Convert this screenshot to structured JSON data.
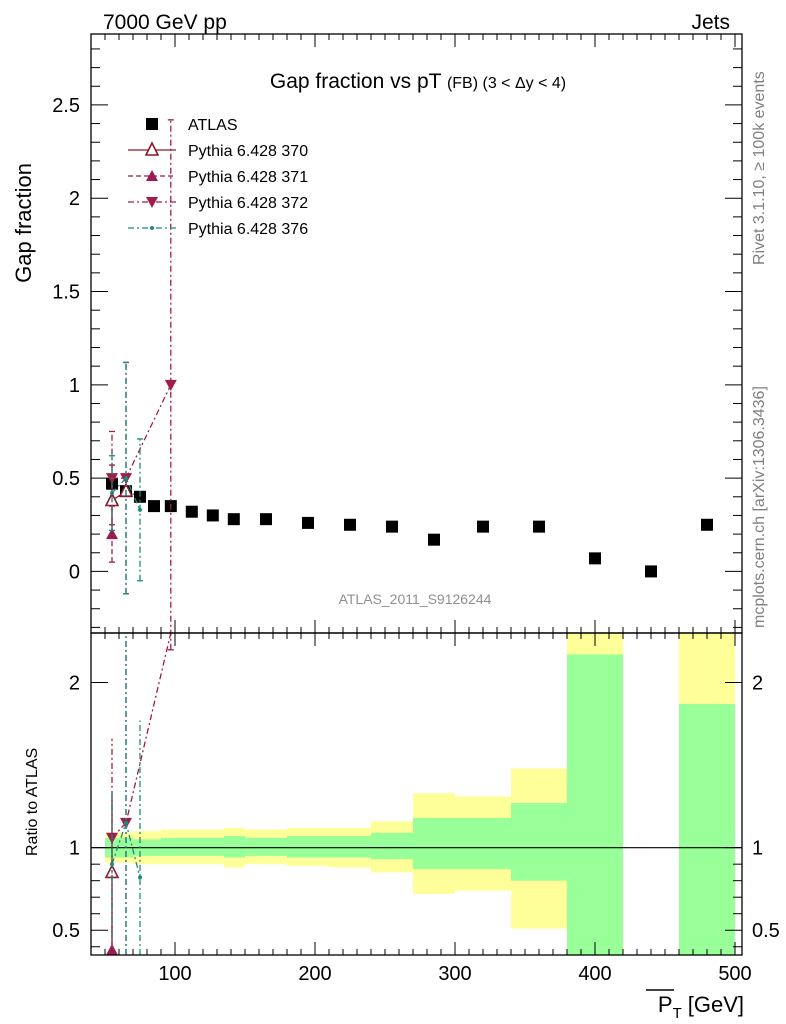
{
  "header": {
    "left": "7000 GeV pp",
    "right": "Jets"
  },
  "side_labels": {
    "rivet": "Rivet 3.1.10, ≥ 100k events",
    "mcplots": "mcplots.cern.ch [arXiv:1306.3436]"
  },
  "chart_data": [
    {
      "type": "scatter",
      "title_main": "Gap fraction vs pT",
      "title_sub": "(FB) (3 < Δy < 4)",
      "ylabel": "Gap fraction",
      "xlim": [
        40,
        505
      ],
      "ylim": [
        -0.33,
        2.88
      ],
      "xticks": [
        100,
        200,
        300,
        400,
        500
      ],
      "yticks": [
        0,
        0.5,
        1,
        1.5,
        2,
        2.5
      ],
      "ytick_labels": [
        "0",
        "0.5",
        "1",
        "1.5",
        "2",
        "2.5"
      ],
      "watermark": "ATLAS_2011_S9126244",
      "legend_position": "top-left",
      "series": [
        {
          "name": "ATLAS",
          "color": "#000000",
          "marker": "square",
          "points": [
            {
              "x": 55,
              "y": 0.47
            },
            {
              "x": 65,
              "y": 0.43
            },
            {
              "x": 75,
              "y": 0.4
            },
            {
              "x": 85,
              "y": 0.35
            },
            {
              "x": 97,
              "y": 0.35
            },
            {
              "x": 112,
              "y": 0.32
            },
            {
              "x": 127,
              "y": 0.3
            },
            {
              "x": 142,
              "y": 0.28
            },
            {
              "x": 165,
              "y": 0.28
            },
            {
              "x": 195,
              "y": 0.26
            },
            {
              "x": 225,
              "y": 0.25
            },
            {
              "x": 255,
              "y": 0.24
            },
            {
              "x": 285,
              "y": 0.17
            },
            {
              "x": 320,
              "y": 0.24
            },
            {
              "x": 360,
              "y": 0.24
            },
            {
              "x": 400,
              "y": 0.07
            },
            {
              "x": 440,
              "y": 0.0
            },
            {
              "x": 480,
              "y": 0.25
            }
          ]
        },
        {
          "name": "Pythia 6.428 370",
          "color": "#8b1a2b",
          "marker": "triangle-up-open",
          "line": "solid",
          "points": [
            {
              "x": 55,
              "y": 0.38,
              "err": 0.19
            },
            {
              "x": 65,
              "y": 0.43,
              "err": 0.0
            }
          ]
        },
        {
          "name": "Pythia 6.428 371",
          "color": "#9b1b52",
          "marker": "triangle-up",
          "line": "dashed",
          "points": [
            {
              "x": 55,
              "y": 0.2,
              "err": 0.15
            }
          ]
        },
        {
          "name": "Pythia 6.428 372",
          "color": "#a01c4a",
          "marker": "triangle-down",
          "line": "dashdot",
          "points": [
            {
              "x": 55,
              "y": 0.5,
              "err": 0.25
            },
            {
              "x": 65,
              "y": 0.5,
              "err": 0.62
            },
            {
              "x": 97,
              "y": 1.0,
              "err": 1.42
            }
          ]
        },
        {
          "name": "Pythia 6.428 376",
          "color": "#1a8c7a",
          "marker": "dot",
          "line": "dashdot",
          "points": [
            {
              "x": 55,
              "y": 0.42,
              "err": 0.2
            },
            {
              "x": 65,
              "y": 0.5,
              "err": 0.62
            },
            {
              "x": 75,
              "y": 0.33,
              "err": 0.38
            }
          ]
        }
      ]
    },
    {
      "type": "ratio",
      "ylabel": "Ratio to ATLAS",
      "xlabel_main": "P",
      "xlabel_sub": "T",
      "xlabel_unit": "[GeV]",
      "xlim": [
        40,
        505
      ],
      "ylim": [
        0.35,
        2.3
      ],
      "xticks": [
        100,
        200,
        300,
        400,
        500
      ],
      "xtick_labels": [
        "100",
        "200",
        "300",
        "400",
        "500"
      ],
      "yticks": [
        0.5,
        1,
        2
      ],
      "ytick_labels": [
        "0.5",
        "1",
        "2"
      ],
      "bands": [
        {
          "x0": 50,
          "x1": 60,
          "green": [
            0.94,
            1.06
          ],
          "yellow": [
            0.91,
            1.09
          ]
        },
        {
          "x0": 60,
          "x1": 70,
          "green": [
            0.94,
            1.06
          ],
          "yellow": [
            0.91,
            1.09
          ]
        },
        {
          "x0": 70,
          "x1": 80,
          "green": [
            0.95,
            1.05
          ],
          "yellow": [
            0.9,
            1.1
          ]
        },
        {
          "x0": 80,
          "x1": 90,
          "green": [
            0.95,
            1.05
          ],
          "yellow": [
            0.9,
            1.1
          ]
        },
        {
          "x0": 90,
          "x1": 105,
          "green": [
            0.95,
            1.06
          ],
          "yellow": [
            0.9,
            1.11
          ]
        },
        {
          "x0": 105,
          "x1": 120,
          "green": [
            0.95,
            1.06
          ],
          "yellow": [
            0.9,
            1.11
          ]
        },
        {
          "x0": 120,
          "x1": 135,
          "green": [
            0.95,
            1.06
          ],
          "yellow": [
            0.9,
            1.11
          ]
        },
        {
          "x0": 135,
          "x1": 150,
          "green": [
            0.94,
            1.07
          ],
          "yellow": [
            0.88,
            1.12
          ]
        },
        {
          "x0": 150,
          "x1": 180,
          "green": [
            0.95,
            1.06
          ],
          "yellow": [
            0.9,
            1.11
          ]
        },
        {
          "x0": 180,
          "x1": 210,
          "green": [
            0.94,
            1.07
          ],
          "yellow": [
            0.89,
            1.12
          ]
        },
        {
          "x0": 210,
          "x1": 240,
          "green": [
            0.94,
            1.07
          ],
          "yellow": [
            0.88,
            1.12
          ]
        },
        {
          "x0": 240,
          "x1": 270,
          "green": [
            0.93,
            1.09
          ],
          "yellow": [
            0.85,
            1.16
          ]
        },
        {
          "x0": 270,
          "x1": 300,
          "green": [
            0.87,
            1.18
          ],
          "yellow": [
            0.72,
            1.33
          ]
        },
        {
          "x0": 300,
          "x1": 340,
          "green": [
            0.87,
            1.18
          ],
          "yellow": [
            0.74,
            1.31
          ]
        },
        {
          "x0": 340,
          "x1": 380,
          "green": [
            0.8,
            1.27
          ],
          "yellow": [
            0.51,
            1.48
          ]
        },
        {
          "x0": 380,
          "x1": 420,
          "green": [
            0.35,
            2.17
          ],
          "yellow": [
            0.35,
            2.3
          ]
        },
        {
          "x0": 460,
          "x1": 500,
          "green": [
            0.35,
            1.87
          ],
          "yellow": [
            0.35,
            2.3
          ]
        }
      ],
      "series": [
        {
          "name": "Pythia 6.428 370",
          "points": [
            {
              "x": 55,
              "y": 0.85,
              "err": 0.47
            }
          ]
        },
        {
          "name": "Pythia 6.428 371",
          "points": [
            {
              "x": 55,
              "y": 0.38,
              "err": 0.17
            }
          ]
        },
        {
          "name": "Pythia 6.428 372",
          "points": [
            {
              "x": 55,
              "y": 1.06,
              "err": 0.6
            },
            {
              "x": 65,
              "y": 1.15,
              "err": 1.4
            },
            {
              "x": 97,
              "y": 2.85,
              "err": 0.0
            }
          ]
        },
        {
          "name": "Pythia 6.428 376",
          "points": [
            {
              "x": 55,
              "y": 0.9,
              "err": 0.45
            },
            {
              "x": 65,
              "y": 1.15,
              "err": 1.4
            },
            {
              "x": 75,
              "y": 0.82,
              "err": 0.95
            }
          ]
        }
      ]
    }
  ]
}
